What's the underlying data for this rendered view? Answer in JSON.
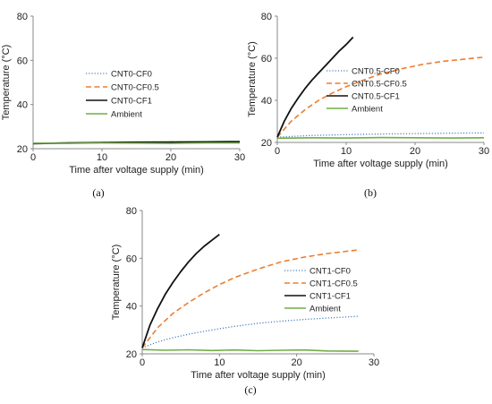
{
  "chart_data": [
    {
      "type": "line",
      "panel_label": "(a)",
      "xlabel": "Time after voltage supply (min)",
      "ylabel": "Temperature (°C)",
      "xlim": [
        0,
        30
      ],
      "ylim": [
        20,
        80
      ],
      "xticks": [
        "0",
        "10",
        "20",
        "30"
      ],
      "yticks": [
        "20",
        "40",
        "60",
        "80"
      ],
      "grid": false,
      "legend_position": "right",
      "series": [
        {
          "name": "CNT0-CF0",
          "color": "#4f81bd",
          "style": "dotted",
          "x": [
            0,
            5,
            10,
            15,
            20,
            25,
            30
          ],
          "y": [
            22.5,
            22.7,
            22.8,
            23.0,
            23.0,
            23.1,
            23.2
          ]
        },
        {
          "name": "CNT0-CF0.5",
          "color": "#ed7d31",
          "style": "dashed",
          "x": [
            0,
            5,
            10,
            15,
            20,
            25,
            30
          ],
          "y": [
            22.4,
            22.6,
            22.8,
            22.9,
            23.0,
            23.0,
            23.1
          ]
        },
        {
          "name": "CNT0-CF1",
          "color": "#111111",
          "style": "solid",
          "x": [
            0,
            5,
            10,
            15,
            20,
            25,
            30
          ],
          "y": [
            22.3,
            22.6,
            22.8,
            22.9,
            23.0,
            23.1,
            23.2
          ]
        },
        {
          "name": "Ambient",
          "color": "#70ad47",
          "style": "solid",
          "x": [
            0,
            5,
            10,
            15,
            20,
            25,
            30
          ],
          "y": [
            22.5,
            22.4,
            22.6,
            22.5,
            22.4,
            22.6,
            22.6
          ]
        }
      ]
    },
    {
      "type": "line",
      "panel_label": "(b)",
      "xlabel": "Time after voltage supply (min)",
      "ylabel": "Temperature (°C)",
      "xlim": [
        0,
        30
      ],
      "ylim": [
        20,
        80
      ],
      "xticks": [
        "0",
        "10",
        "20",
        "30"
      ],
      "yticks": [
        "20",
        "40",
        "60",
        "80"
      ],
      "grid": false,
      "legend_position": "right",
      "series": [
        {
          "name": "CNT0.5-CF0",
          "color": "#4f81bd",
          "style": "dotted",
          "x": [
            0,
            5,
            10,
            15,
            20,
            25,
            30
          ],
          "y": [
            22.5,
            23.3,
            23.7,
            24.0,
            24.2,
            24.4,
            24.5
          ]
        },
        {
          "name": "CNT0.5-CF0.5",
          "color": "#ed7d31",
          "style": "dashed",
          "x": [
            0,
            2,
            4,
            6,
            8,
            10,
            12,
            15,
            18,
            21,
            24,
            27,
            30
          ],
          "y": [
            22.5,
            30,
            35.5,
            40,
            43.5,
            46.5,
            49,
            52.5,
            55,
            57,
            58.5,
            59.5,
            60.5
          ]
        },
        {
          "name": "CNT0.5-CF1",
          "color": "#111111",
          "style": "solid",
          "x": [
            0,
            1,
            2,
            3,
            4,
            5,
            6,
            7,
            8,
            9,
            10,
            11
          ],
          "y": [
            22.5,
            30,
            36,
            41,
            45.5,
            49.5,
            53,
            56.5,
            60,
            63.5,
            66.5,
            70
          ]
        },
        {
          "name": "Ambient",
          "color": "#70ad47",
          "style": "solid",
          "x": [
            0,
            5,
            10,
            15,
            20,
            25,
            30
          ],
          "y": [
            22,
            22.2,
            22.1,
            22.3,
            22.2,
            22.1,
            22.2
          ]
        }
      ]
    },
    {
      "type": "line",
      "panel_label": "(c)",
      "xlabel": "Time after voltage supply (min)",
      "ylabel": "Temperature (°C)",
      "xlim": [
        0,
        30
      ],
      "ylim": [
        20,
        80
      ],
      "xticks": [
        "0",
        "10",
        "20",
        "30"
      ],
      "yticks": [
        "20",
        "40",
        "60",
        "80"
      ],
      "grid": false,
      "legend_position": "right",
      "series": [
        {
          "name": "CNT1-CF0",
          "color": "#4f81bd",
          "style": "dotted",
          "x": [
            0,
            2,
            4,
            6,
            8,
            10,
            12,
            15,
            18,
            21,
            24,
            28
          ],
          "y": [
            22.5,
            25,
            26.8,
            28.2,
            29.4,
            30.5,
            31.5,
            32.8,
            33.7,
            34.4,
            35,
            35.7
          ]
        },
        {
          "name": "CNT1-CF0.5",
          "color": "#ed7d31",
          "style": "dashed",
          "x": [
            0,
            2,
            4,
            6,
            8,
            10,
            12,
            15,
            18,
            21,
            24,
            28
          ],
          "y": [
            22.5,
            31,
            37,
            41.5,
            45.5,
            49,
            52,
            55.5,
            58.5,
            60.5,
            62,
            63.5
          ]
        },
        {
          "name": "CNT1-CF1",
          "color": "#111111",
          "style": "solid",
          "x": [
            0,
            1,
            2,
            3,
            4,
            5,
            6,
            7,
            8,
            9,
            10
          ],
          "y": [
            22.5,
            32,
            39,
            45,
            50,
            54.5,
            58.5,
            62,
            65,
            67.5,
            70
          ]
        },
        {
          "name": "Ambient",
          "color": "#70ad47",
          "style": "solid",
          "x": [
            0,
            3,
            6,
            9,
            12,
            15,
            18,
            21,
            24,
            28
          ],
          "y": [
            21.8,
            21.5,
            21.7,
            21.4,
            21.6,
            21.3,
            21.5,
            21.6,
            21.2,
            21.1
          ]
        }
      ]
    }
  ]
}
